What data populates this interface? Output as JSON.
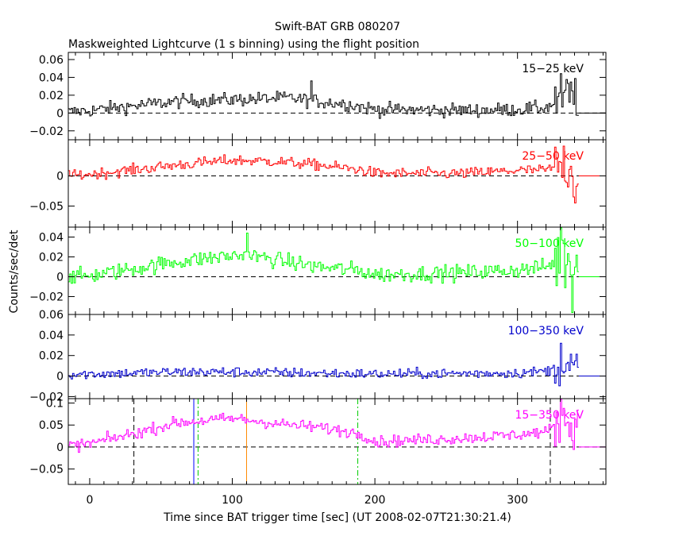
{
  "title": "Swift-BAT GRB 080207",
  "subtitle": "Maskweighted Lightcurve (1 s binning) using the flight position",
  "chart_data": {
    "type": "line",
    "xlabel": "Time since BAT trigger time [sec] (UT 2008-02-07T21:30:21.4)",
    "ylabel": "Counts/sec/det",
    "xlim": [
      -15,
      362
    ],
    "xticks": [
      0,
      100,
      200,
      300
    ],
    "x_tick_labels": [
      "0",
      "100",
      "200",
      "300"
    ],
    "data_range": [
      -15,
      342
    ],
    "panels": [
      {
        "name": "15-25 keV",
        "label": "15−25 keV",
        "color": "#000000",
        "ylim": [
          -0.03,
          0.068
        ],
        "yticks": [
          -0.02,
          0,
          0.02,
          0.04,
          0.06
        ],
        "ytick_labels": [
          "−0.02",
          "0",
          "0.02",
          "0.04",
          "0.06"
        ],
        "zero_line": true,
        "envelope": {
          "x": [
            -15,
            0,
            30,
            60,
            100,
            140,
            160,
            180,
            200,
            260,
            300,
            320,
            332,
            342
          ],
          "y": [
            0.001,
            0.003,
            0.008,
            0.013,
            0.015,
            0.017,
            0.013,
            0.01,
            0.004,
            0.003,
            0.004,
            0.006,
            0.018,
            0.02
          ]
        },
        "noise": 0.0055,
        "tail_noise": 0.02,
        "spikes": [
          {
            "x": 155,
            "y": 0.036
          }
        ]
      },
      {
        "name": "25-50 keV",
        "label": "25−50 keV",
        "color": "#ff0000",
        "ylim": [
          -0.085,
          0.06
        ],
        "yticks": [
          -0.05,
          0
        ],
        "ytick_labels": [
          "−0.05",
          "0"
        ],
        "zero_line": true,
        "envelope": {
          "x": [
            -15,
            0,
            30,
            60,
            100,
            130,
            160,
            190,
            200,
            260,
            300,
            320,
            332,
            342
          ],
          "y": [
            0.0,
            0.003,
            0.01,
            0.018,
            0.026,
            0.024,
            0.018,
            0.01,
            0.004,
            0.004,
            0.009,
            0.01,
            0.02,
            0.0
          ]
        },
        "noise": 0.0065,
        "tail_noise": 0.03,
        "spikes": [
          {
            "x": 340,
            "y": -0.045
          }
        ]
      },
      {
        "name": "50-100 keV",
        "label": "50−100 keV",
        "color": "#00ff00",
        "ylim": [
          -0.038,
          0.05
        ],
        "yticks": [
          -0.02,
          0,
          0.02,
          0.04
        ],
        "ytick_labels": [
          "−0.02",
          "0",
          "0.02",
          "0.04"
        ],
        "zero_line": true,
        "envelope": {
          "x": [
            -15,
            0,
            30,
            60,
            90,
            110,
            130,
            160,
            190,
            200,
            260,
            300,
            320,
            332,
            342
          ],
          "y": [
            0.0,
            0.001,
            0.008,
            0.015,
            0.02,
            0.022,
            0.017,
            0.01,
            0.006,
            0.002,
            0.004,
            0.007,
            0.01,
            0.02,
            0.01
          ]
        },
        "noise": 0.0058,
        "tail_noise": 0.025,
        "spikes": [
          {
            "x": 110,
            "y": 0.044
          },
          {
            "x": 330,
            "y": 0.05
          },
          {
            "x": 338,
            "y": -0.036
          }
        ]
      },
      {
        "name": "100-350 keV",
        "label": "100−350 keV",
        "color": "#0000cc",
        "ylim": [
          -0.022,
          0.06
        ],
        "yticks": [
          -0.02,
          0,
          0.02,
          0.04,
          0.06
        ],
        "ytick_labels": [
          "−0.02",
          "0",
          "0.02",
          "0.04",
          "0.06"
        ],
        "zero_line": true,
        "envelope": {
          "x": [
            -15,
            0,
            60,
            100,
            200,
            300,
            320,
            332,
            342
          ],
          "y": [
            0.002,
            0.002,
            0.004,
            0.004,
            0.002,
            0.003,
            0.005,
            0.01,
            0.008
          ]
        },
        "noise": 0.0035,
        "tail_noise": 0.015,
        "spikes": [
          {
            "x": 330,
            "y": 0.032
          }
        ]
      },
      {
        "name": "15-350 keV",
        "label": "15−350 keV",
        "color": "#ff00ff",
        "ylim": [
          -0.085,
          0.11
        ],
        "yticks": [
          -0.05,
          0,
          0.05,
          0.1
        ],
        "ytick_labels": [
          "−0.05",
          "0",
          "0.05",
          "0.1"
        ],
        "zero_line": true,
        "envelope": {
          "x": [
            -15,
            0,
            30,
            60,
            100,
            140,
            160,
            190,
            200,
            260,
            300,
            320,
            332,
            342
          ],
          "y": [
            0.003,
            0.008,
            0.03,
            0.055,
            0.065,
            0.05,
            0.045,
            0.03,
            0.012,
            0.02,
            0.028,
            0.035,
            0.06,
            0.05
          ]
        },
        "noise": 0.0095,
        "tail_noise": 0.035,
        "spikes": [
          {
            "x": 330,
            "y": 0.108
          }
        ],
        "vlines": [
          {
            "x": 31,
            "color": "#000000",
            "style": "dashed"
          },
          {
            "x": 73,
            "color": "#0000ff",
            "style": "solid"
          },
          {
            "x": 76,
            "color": "#00cc00",
            "style": "dashdot"
          },
          {
            "x": 110,
            "color": "#ff8800",
            "style": "solid"
          },
          {
            "x": 188,
            "color": "#00cc00",
            "style": "dashdot"
          },
          {
            "x": 323,
            "color": "#000000",
            "style": "dashed"
          }
        ]
      }
    ]
  }
}
